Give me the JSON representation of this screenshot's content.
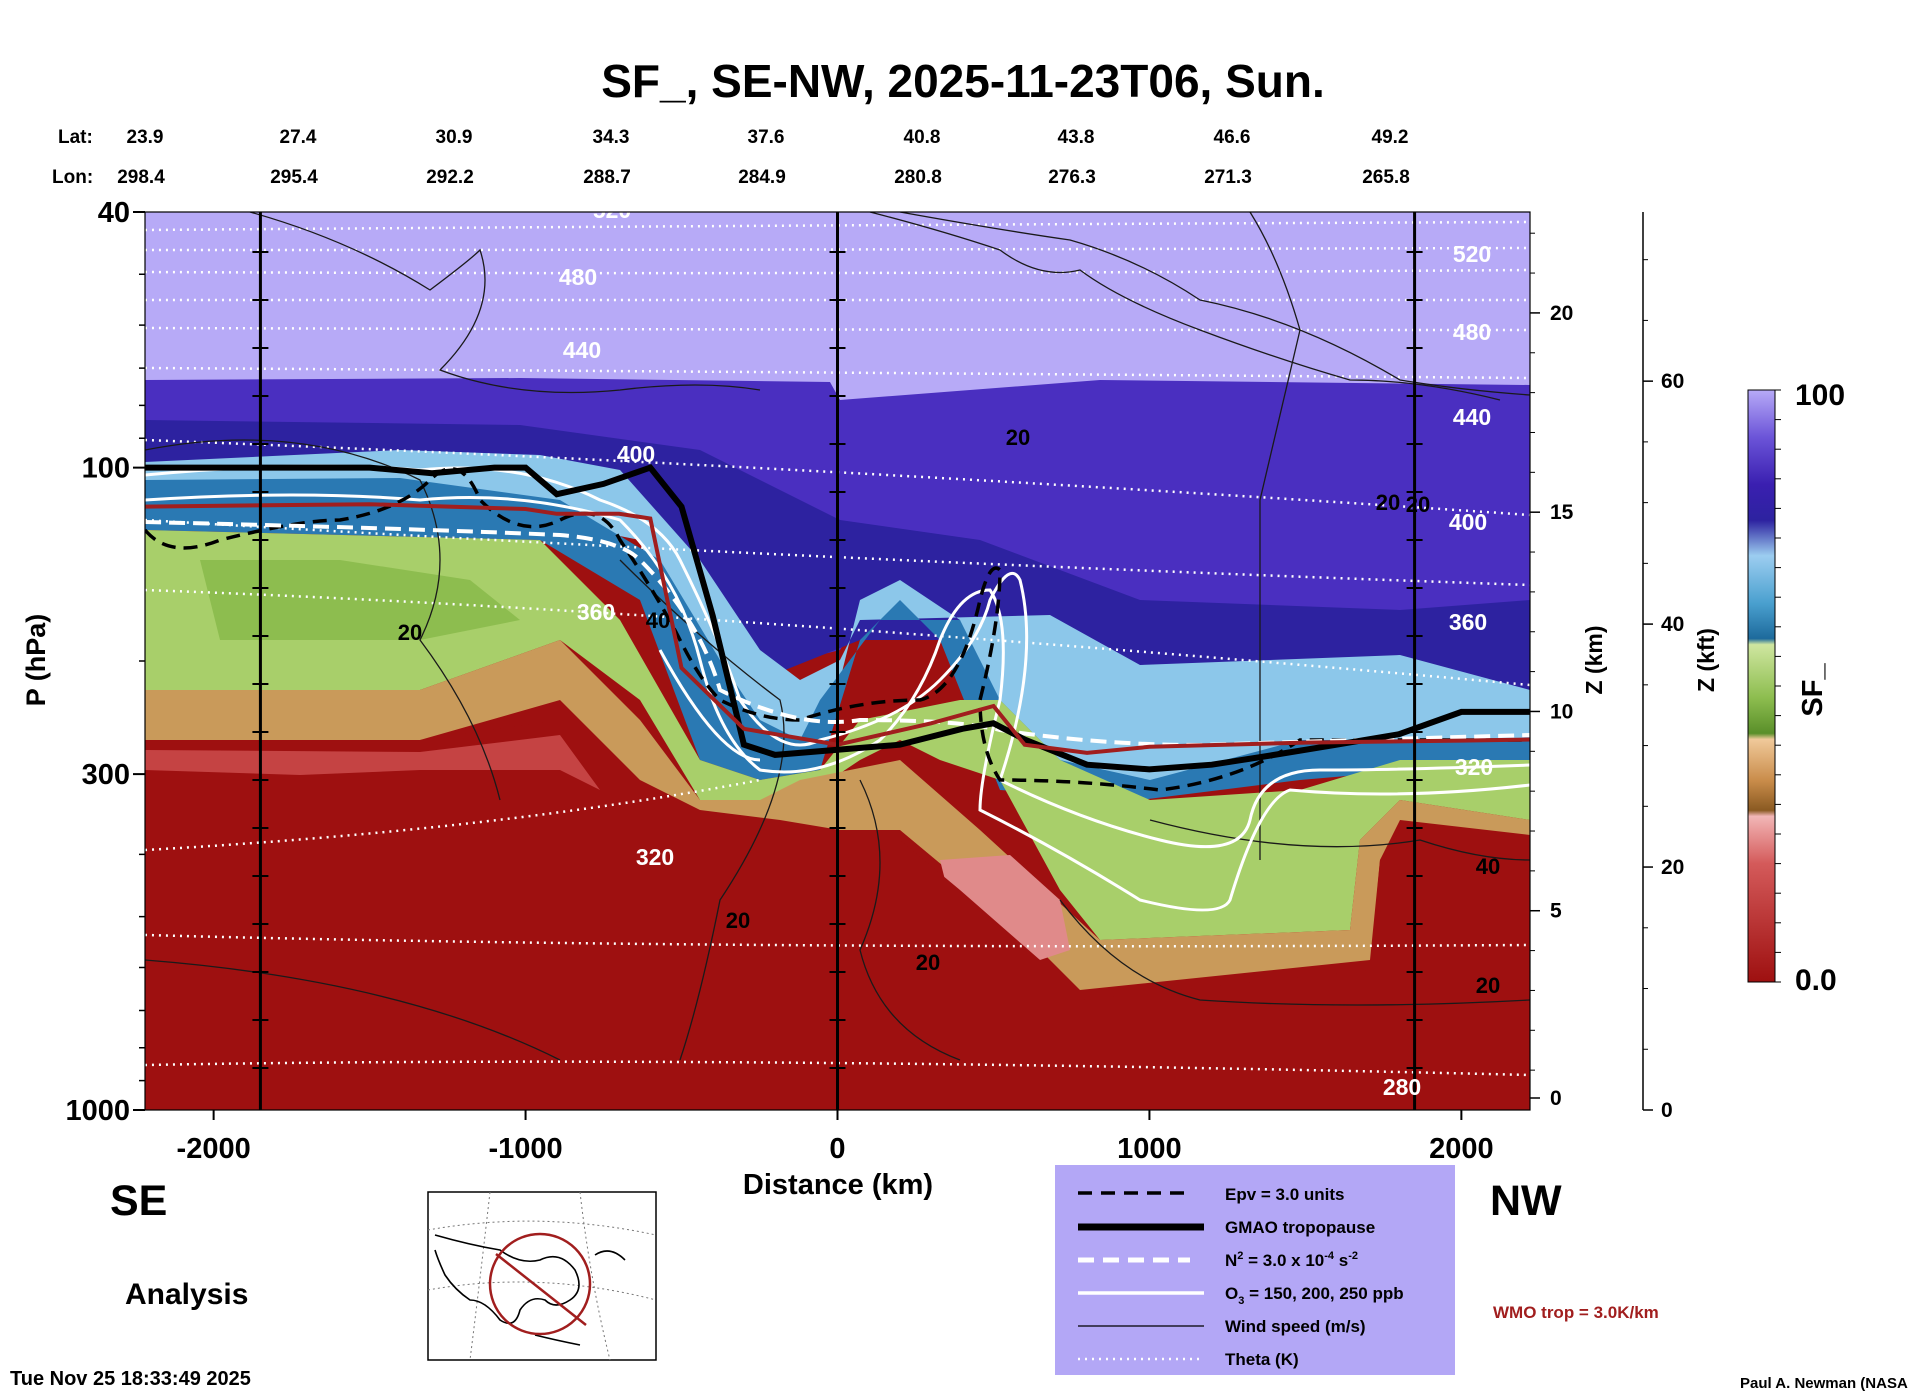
{
  "chart_data": {
    "type": "heatmap",
    "title": "SF_, SE-NW, 2025-11-23T06, Sun.",
    "xlabel": "Distance (km)",
    "ylabel": "P (hPa)",
    "y2label": "Z (km)",
    "y3label": "Z (kft)",
    "colorbar_label": "SF_",
    "xlim": [
      -2220,
      2220
    ],
    "ylim": [
      1000,
      40
    ],
    "xticks": [
      -2000,
      -1000,
      0,
      1000,
      2000
    ],
    "xtick_labels": [
      "-2000",
      "-1000",
      "0",
      "1000",
      "2000"
    ],
    "yticks": [
      40,
      100,
      300,
      1000
    ],
    "ytick_labels": [
      "40",
      "100",
      "300",
      "1000"
    ],
    "zkm_ticks": [
      0,
      5,
      10,
      15,
      20
    ],
    "zkm_labels": [
      "0",
      "5",
      "10",
      "15",
      "20"
    ],
    "zkft_ticks": [
      0,
      20,
      40,
      60
    ],
    "zkft_labels": [
      "0",
      "20",
      "40",
      "60"
    ],
    "colorbar_range": [
      0.0,
      100
    ],
    "colorbar_labels": [
      "100",
      "0.0"
    ],
    "lat_label": "Lat:",
    "lon_label": "Lon:",
    "lat": [
      "23.9",
      "27.4",
      "30.9",
      "34.3",
      "37.6",
      "40.8",
      "43.8",
      "46.6",
      "49.2"
    ],
    "lon": [
      "298.4",
      "295.4",
      "292.2",
      "288.7",
      "284.9",
      "280.8",
      "276.3",
      "271.3",
      "265.8"
    ],
    "vertical_lines_km": [
      -1850,
      0,
      1850
    ],
    "tropopause_gmao_hpa": {
      "x": [
        -2220,
        -1800,
        -1500,
        -1300,
        -1100,
        -1000,
        -900,
        -750,
        -600,
        -500,
        -400,
        -300,
        -200,
        0,
        200,
        400,
        500,
        600,
        800,
        1000,
        1200,
        1400,
        1600,
        1800,
        2000,
        2220
      ],
      "p": [
        100,
        100,
        100,
        102,
        100,
        100,
        110,
        106,
        100,
        115,
        170,
        270,
        280,
        275,
        270,
        255,
        250,
        265,
        290,
        295,
        290,
        280,
        270,
        260,
        240,
        240
      ]
    },
    "wmo_trop_hpa": {
      "x": [
        -2220,
        -1500,
        -1000,
        -900,
        -700,
        -600,
        -500,
        -300,
        0,
        300,
        500,
        600,
        800,
        1000,
        1500,
        2000,
        2220
      ],
      "p": [
        115,
        114,
        116,
        118,
        118,
        120,
        205,
        255,
        270,
        250,
        235,
        270,
        278,
        272,
        268,
        266,
        265
      ]
    },
    "theta_contours": [
      {
        "label": "520",
        "p": 42
      },
      {
        "label": "480",
        "p": 52
      },
      {
        "label": "440",
        "p": 66
      },
      {
        "label": "400",
        "p": 100
      },
      {
        "label": "360",
        "p": 165
      },
      {
        "label": "320",
        "p": 290
      },
      {
        "label": "280",
        "p": 990
      }
    ],
    "theta_labels": [
      "520",
      "480",
      "440",
      "400",
      "360",
      "320",
      "280",
      "520",
      "480",
      "440",
      "400",
      "360",
      "320"
    ],
    "wind_labels": [
      "20",
      "20",
      "20",
      "20",
      "20",
      "20",
      "40",
      "40",
      "20"
    ],
    "field_summary": "SF_ near 100 in stratosphere above ~100 hPa on SE side and ~160 hPa on NW side; near 0 below ~230-300 hPa with a tropopause fold near +400 to +800 km"
  },
  "corner_labels": {
    "se": "SE",
    "nw": "NW",
    "analysis": "Analysis",
    "timestamp": "Tue Nov 25 18:33:49 2025",
    "author": "Paul A. Newman (NASA"
  },
  "legend": {
    "epv": "Epv = 3.0 units",
    "gmao": "GMAO tropopause",
    "n2": "N",
    "n2_rest": " = 3.0 x 10",
    "n2_exp": "-4",
    "n2_unit": " s",
    "n2_unit_exp": "-2",
    "o3": "O",
    "o3_sub": "3",
    "o3_rest": " = 150, 200, 250 ppb",
    "wind": "Wind speed (m/s)",
    "theta": "Theta (K)",
    "wmo": "WMO trop = 3.0K/km",
    "bg_color": "#b3a7f6",
    "wmo_color": "#a11e1e"
  },
  "colors": {
    "strat_top": "#b7aaf7",
    "strat_dark": "#3a1fb0",
    "blue": "#2a79b3",
    "light_blue": "#8cc7ea",
    "green": "#a8cf6a",
    "brown": "#c99a5a",
    "red": "#9e1010"
  }
}
